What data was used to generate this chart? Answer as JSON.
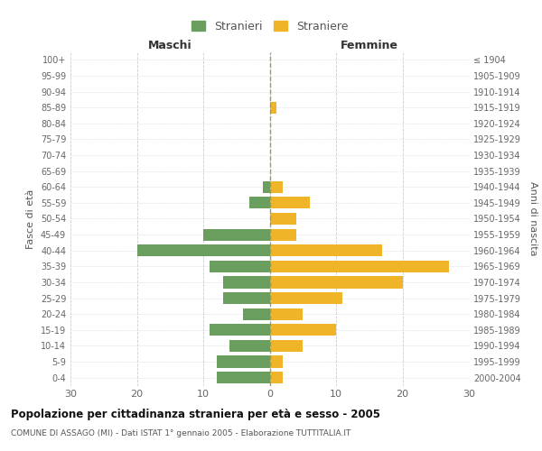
{
  "age_groups": [
    "100+",
    "95-99",
    "90-94",
    "85-89",
    "80-84",
    "75-79",
    "70-74",
    "65-69",
    "60-64",
    "55-59",
    "50-54",
    "45-49",
    "40-44",
    "35-39",
    "30-34",
    "25-29",
    "20-24",
    "15-19",
    "10-14",
    "5-9",
    "0-4"
  ],
  "birth_years": [
    "≤ 1904",
    "1905-1909",
    "1910-1914",
    "1915-1919",
    "1920-1924",
    "1925-1929",
    "1930-1934",
    "1935-1939",
    "1940-1944",
    "1945-1949",
    "1950-1954",
    "1955-1959",
    "1960-1964",
    "1965-1969",
    "1970-1974",
    "1975-1979",
    "1980-1984",
    "1985-1989",
    "1990-1994",
    "1995-1999",
    "2000-2004"
  ],
  "maschi": [
    0,
    0,
    0,
    0,
    0,
    0,
    0,
    0,
    1,
    3,
    0,
    10,
    20,
    9,
    7,
    7,
    4,
    9,
    6,
    8,
    8
  ],
  "femmine": [
    0,
    0,
    0,
    1,
    0,
    0,
    0,
    0,
    2,
    6,
    4,
    4,
    17,
    27,
    20,
    11,
    5,
    10,
    5,
    2,
    2
  ],
  "maschi_color": "#6a9e5f",
  "femmine_color": "#f0b429",
  "background_color": "#ffffff",
  "grid_color": "#cccccc",
  "title": "Popolazione per cittadinanza straniera per età e sesso - 2005",
  "subtitle": "COMUNE DI ASSAGO (MI) - Dati ISTAT 1° gennaio 2005 - Elaborazione TUTTITALIA.IT",
  "ylabel_left": "Fasce di età",
  "ylabel_right": "Anni di nascita",
  "xlabel_left": "Maschi",
  "xlabel_top_right": "Femmine",
  "legend_stranieri": "Stranieri",
  "legend_straniere": "Straniere",
  "xlim": 30,
  "bar_height": 0.75
}
